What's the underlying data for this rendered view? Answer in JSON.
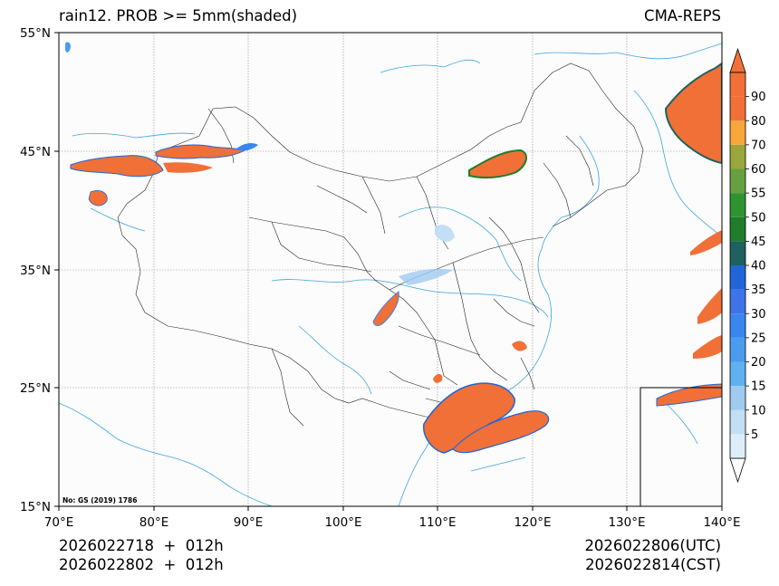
{
  "header": {
    "title_left": "rain12. PROB >= 5mm(shaded)",
    "title_right": "CMA-REPS"
  },
  "map": {
    "lat_labels": [
      "55°N",
      "45°N",
      "35°N",
      "25°N",
      "15°N"
    ],
    "lon_labels": [
      "70°E",
      "80°E",
      "90°E",
      "100°E",
      "110°E",
      "120°E",
      "130°E",
      "140°E"
    ],
    "extent": {
      "lon_min": 70,
      "lon_max": 140,
      "lat_min": 15,
      "lat_max": 55
    },
    "approval_number": "No: GS (2019) 1786",
    "shading_color": "#f07038",
    "river_color": "#3aa6dd"
  },
  "colorbar": {
    "levels": [
      "5",
      "10",
      "15",
      "20",
      "25",
      "30",
      "35",
      "40",
      "45",
      "50",
      "55",
      "60",
      "70",
      "80",
      "90"
    ],
    "colors": [
      "#ddeefb",
      "#c3def5",
      "#9fcbf1",
      "#5fb1f1",
      "#4a9cf0",
      "#3a86ef",
      "#3e74e8",
      "#2066d8",
      "#1f6060",
      "#1f7d2a",
      "#2e9430",
      "#67a13f",
      "#9aa63c",
      "#f6a63a",
      "#f07038",
      "#f07038"
    ]
  },
  "footer": {
    "init_line1": "2026022718  +  012h",
    "init_line2": "2026022802  +  012h",
    "valid_utc": "2026022806(UTC)",
    "valid_cst": "2026022814(CST)"
  }
}
